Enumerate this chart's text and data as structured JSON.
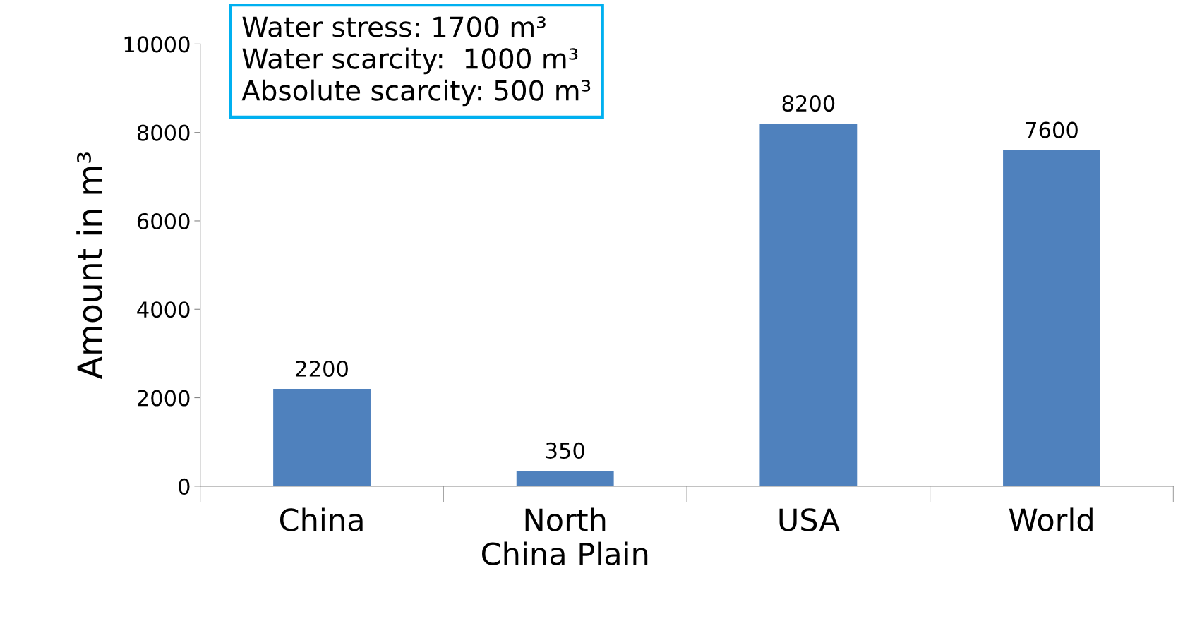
{
  "chart_data": {
    "type": "bar",
    "ylabel": "Amount in m³",
    "categories": [
      "China",
      "North\nChina Plain",
      "USA",
      "World"
    ],
    "values": [
      2200,
      350,
      8200,
      7600
    ],
    "color": "#4f81bd",
    "data_labels": true,
    "ylim": [
      0,
      10000
    ],
    "yticks": [
      0,
      2000,
      4000,
      6000,
      8000,
      10000
    ],
    "grid": false,
    "legend": false,
    "annotations": [
      "Water stress: 1700 m³",
      "Water scarcity:  1000 m³",
      "Absolute scarcity: 500 m³"
    ]
  }
}
